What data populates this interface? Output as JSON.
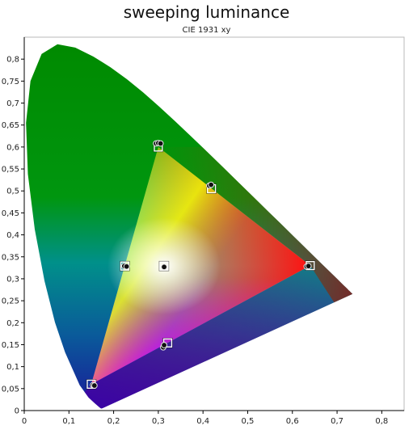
{
  "chart_data": {
    "type": "scatter",
    "title": "sweeping luminance",
    "subtitle": "CIE 1931 xy",
    "xlim": [
      0,
      0.85
    ],
    "ylim": [
      0,
      0.85
    ],
    "x_ticks": [
      "0",
      "0,1",
      "0,2",
      "0,3",
      "0,4",
      "0,5",
      "0,6",
      "0,7",
      "0,8"
    ],
    "y_ticks": [
      "0",
      "0,05",
      "0,1",
      "0,15",
      "0,2",
      "0,25",
      "0,3",
      "0,35",
      "0,4",
      "0,45",
      "0,5",
      "0,55",
      "0,6",
      "0,65",
      "0,7",
      "0,75",
      "0,8"
    ],
    "grid": false,
    "gamut_triangle": [
      {
        "x": 0.3,
        "y": 0.6
      },
      {
        "x": 0.64,
        "y": 0.33
      },
      {
        "x": 0.15,
        "y": 0.06
      }
    ],
    "target_squares": [
      {
        "x": 0.3,
        "y": 0.6
      },
      {
        "x": 0.64,
        "y": 0.33
      },
      {
        "x": 0.15,
        "y": 0.06
      },
      {
        "x": 0.419,
        "y": 0.505
      },
      {
        "x": 0.225,
        "y": 0.329
      },
      {
        "x": 0.321,
        "y": 0.154
      },
      {
        "x": 0.3127,
        "y": 0.329
      }
    ],
    "measured_points": [
      {
        "x": 0.295,
        "y": 0.608
      },
      {
        "x": 0.3,
        "y": 0.609
      },
      {
        "x": 0.305,
        "y": 0.608
      },
      {
        "x": 0.414,
        "y": 0.512
      },
      {
        "x": 0.418,
        "y": 0.514
      },
      {
        "x": 0.632,
        "y": 0.328
      },
      {
        "x": 0.636,
        "y": 0.329
      },
      {
        "x": 0.224,
        "y": 0.329
      },
      {
        "x": 0.229,
        "y": 0.328
      },
      {
        "x": 0.313,
        "y": 0.327
      },
      {
        "x": 0.311,
        "y": 0.144
      },
      {
        "x": 0.313,
        "y": 0.149
      },
      {
        "x": 0.154,
        "y": 0.058
      },
      {
        "x": 0.157,
        "y": 0.057
      }
    ]
  },
  "colors": {
    "green": "#008a00",
    "teal": "#00908a",
    "blue": "#1a1a9a",
    "purple": "#5a0090",
    "red": "#9a0010",
    "olive": "#6e6a00"
  }
}
